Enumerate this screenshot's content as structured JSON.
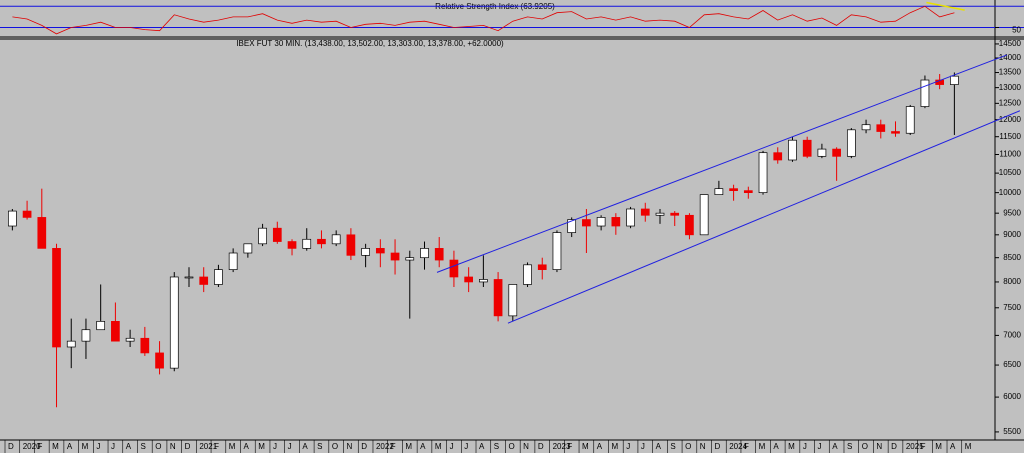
{
  "chart_data": [
    {
      "type": "line",
      "title": "Relative Strength Index (63.9205)",
      "color": "#e00000",
      "x": [
        0.5,
        1.5,
        2.5,
        3.5,
        4.5,
        5.5,
        6.5,
        7.5,
        8.5,
        9.5,
        10.5,
        11.5,
        12.5,
        13.5,
        14.5,
        15.5,
        16.5,
        17.5,
        18.5,
        19.5,
        20.5,
        21.5,
        22.5,
        23.5,
        24.5,
        25.5,
        26.5,
        27.5,
        28.5,
        29.5,
        30.5,
        31.5,
        32.5,
        33.5,
        34.5,
        35.5,
        36.5,
        37.5,
        38.5,
        39.5,
        40.5,
        41.5,
        42.5,
        43.5,
        44.5,
        45.5,
        46.5,
        47.5,
        48.5,
        49.5,
        50.5,
        51.5,
        52.5,
        53.5,
        54.5,
        55.5,
        56.5,
        57.5,
        58.5,
        59.5,
        60.5,
        61.5,
        62.5,
        63.5,
        64.5
      ],
      "values": [
        60,
        58,
        52,
        44,
        50,
        52,
        55,
        50,
        50,
        48,
        47,
        62,
        58,
        55,
        57,
        60,
        60,
        63,
        57,
        54,
        57,
        55,
        56,
        50,
        53,
        54,
        52,
        55,
        56,
        53,
        50,
        51,
        52,
        47,
        56,
        60,
        58,
        64,
        65,
        58,
        60,
        57,
        60,
        56,
        57,
        56,
        50,
        62,
        63,
        60,
        58,
        66,
        57,
        62,
        56,
        59,
        52,
        62,
        60,
        55,
        56,
        64,
        70,
        60,
        63.9
      ],
      "xlim": [
        -0.34,
        67.26
      ],
      "ylim": [
        42,
        75
      ],
      "yticks": [
        50
      ],
      "hlines": [
        70,
        50
      ],
      "hline_color": "#1010e0",
      "trendline": {
        "x": [
          62.6,
          65.2
        ],
        "y": [
          73.6,
          66.4
        ],
        "color": "#e8e000"
      }
    },
    {
      "type": "candlestick",
      "title": "IBEX FUT 30 MIN. (13,438.00, 13,502.00, 13,303.00, 13,378.00, +62.0000)",
      "x": [
        0.5,
        1.5,
        2.5,
        3.5,
        4.5,
        5.5,
        6.5,
        7.5,
        8.5,
        9.5,
        10.5,
        11.5,
        12.5,
        13.5,
        14.5,
        15.5,
        16.5,
        17.5,
        18.5,
        19.5,
        20.5,
        21.5,
        22.5,
        23.5,
        24.5,
        25.5,
        26.5,
        27.5,
        28.5,
        29.5,
        30.5,
        31.5,
        32.5,
        33.5,
        34.5,
        35.5,
        36.5,
        37.5,
        38.5,
        39.5,
        40.5,
        41.5,
        42.5,
        43.5,
        44.5,
        45.5,
        46.5,
        47.5,
        48.5,
        49.5,
        50.5,
        51.5,
        52.5,
        53.5,
        54.5,
        55.5,
        56.5,
        57.5,
        58.5,
        59.5,
        60.5,
        61.5,
        62.5,
        63.5,
        64.5
      ],
      "open": [
        9200,
        9550,
        9400,
        8700,
        6800,
        6900,
        7100,
        7250,
        6900,
        6950,
        6700,
        6450,
        8100,
        8100,
        7950,
        8250,
        8600,
        8800,
        9150,
        8850,
        8700,
        8900,
        8800,
        9000,
        8550,
        8700,
        8600,
        8450,
        8500,
        8700,
        8450,
        8100,
        8000,
        8050,
        7350,
        7950,
        8350,
        8250,
        9050,
        9350,
        9200,
        9400,
        9200,
        9600,
        9450,
        9500,
        9450,
        9000,
        9950,
        10100,
        10050,
        10000,
        11050,
        10850,
        11400,
        10950,
        11150,
        10950,
        11700,
        11850,
        11650,
        11600,
        12400,
        13250,
        13100
      ],
      "high": [
        9600,
        9800,
        10100,
        8800,
        7300,
        7300,
        7950,
        7600,
        7100,
        7150,
        6900,
        8200,
        8300,
        8300,
        8350,
        8700,
        8800,
        9250,
        9300,
        8900,
        9150,
        9100,
        9100,
        9150,
        8800,
        8900,
        8900,
        8650,
        8850,
        8950,
        8650,
        8300,
        8550,
        8200,
        7950,
        8400,
        8500,
        9100,
        9400,
        9600,
        9450,
        9500,
        9650,
        9750,
        9600,
        9550,
        9500,
        9950,
        10300,
        10200,
        10150,
        11100,
        11200,
        11500,
        11500,
        11300,
        11200,
        11750,
        12000,
        12000,
        11950,
        12450,
        13400,
        13450,
        13502
      ],
      "low": [
        9100,
        9350,
        8700,
        5850,
        6450,
        6600,
        7100,
        6900,
        6800,
        6650,
        6350,
        6400,
        7900,
        7800,
        7900,
        8200,
        8500,
        8750,
        8800,
        8550,
        8650,
        8700,
        8750,
        8450,
        8300,
        8300,
        8150,
        7300,
        8250,
        8300,
        7900,
        7800,
        7900,
        7250,
        7250,
        7900,
        8050,
        8200,
        8950,
        8600,
        9100,
        9000,
        9150,
        9300,
        9250,
        9200,
        8900,
        9000,
        9950,
        9800,
        9850,
        9950,
        10750,
        10800,
        10900,
        10900,
        10300,
        10900,
        11600,
        11450,
        11500,
        11550,
        12350,
        12950,
        11550
      ],
      "close": [
        9550,
        9400,
        8700,
        6800,
        6900,
        7100,
        7250,
        6900,
        6950,
        6700,
        6450,
        8100,
        8100,
        7950,
        8250,
        8600,
        8800,
        9150,
        8850,
        8700,
        8900,
        8800,
        9000,
        8550,
        8700,
        8600,
        8450,
        8500,
        8700,
        8450,
        8100,
        8000,
        8050,
        7350,
        7950,
        8350,
        8250,
        9050,
        9350,
        9200,
        9400,
        9200,
        9600,
        9450,
        9500,
        9450,
        9000,
        9950,
        10100,
        10050,
        10000,
        11050,
        10850,
        11400,
        10950,
        11150,
        10950,
        11700,
        11850,
        11650,
        11600,
        12400,
        13250,
        13100,
        13378
      ],
      "up_color": "#ffffff",
      "down_color": "#ee0000",
      "log": true,
      "xlim": [
        -0.34,
        67.26
      ],
      "ylim": [
        5390,
        14680
      ],
      "yticks": [
        5500,
        6000,
        6500,
        7000,
        7500,
        8000,
        8500,
        9000,
        9500,
        10000,
        10500,
        11000,
        11500,
        12000,
        12500,
        13000,
        13500,
        14000,
        14500
      ],
      "xticks": [
        {
          "value": 0,
          "label": "D"
        },
        {
          "value": 1,
          "label": "2020"
        },
        {
          "value": 2,
          "label": "F"
        },
        {
          "value": 3,
          "label": "M"
        },
        {
          "value": 4,
          "label": "A"
        },
        {
          "value": 5,
          "label": "M"
        },
        {
          "value": 6,
          "label": "J"
        },
        {
          "value": 7,
          "label": "J"
        },
        {
          "value": 8,
          "label": "A"
        },
        {
          "value": 9,
          "label": "S"
        },
        {
          "value": 10,
          "label": "O"
        },
        {
          "value": 11,
          "label": "N"
        },
        {
          "value": 12,
          "label": "D"
        },
        {
          "value": 13,
          "label": "2021"
        },
        {
          "value": 14,
          "label": "F"
        },
        {
          "value": 15,
          "label": "M"
        },
        {
          "value": 16,
          "label": "A"
        },
        {
          "value": 17,
          "label": "M"
        },
        {
          "value": 18,
          "label": "J"
        },
        {
          "value": 19,
          "label": "J"
        },
        {
          "value": 20,
          "label": "A"
        },
        {
          "value": 21,
          "label": "S"
        },
        {
          "value": 22,
          "label": "O"
        },
        {
          "value": 23,
          "label": "N"
        },
        {
          "value": 24,
          "label": "D"
        },
        {
          "value": 25,
          "label": "2022"
        },
        {
          "value": 26,
          "label": "F"
        },
        {
          "value": 27,
          "label": "M"
        },
        {
          "value": 28,
          "label": "A"
        },
        {
          "value": 29,
          "label": "M"
        },
        {
          "value": 30,
          "label": "J"
        },
        {
          "value": 31,
          "label": "J"
        },
        {
          "value": 32,
          "label": "A"
        },
        {
          "value": 33,
          "label": "S"
        },
        {
          "value": 34,
          "label": "O"
        },
        {
          "value": 35,
          "label": "N"
        },
        {
          "value": 36,
          "label": "D"
        },
        {
          "value": 37,
          "label": "2023"
        },
        {
          "value": 38,
          "label": "F"
        },
        {
          "value": 39,
          "label": "M"
        },
        {
          "value": 40,
          "label": "A"
        },
        {
          "value": 41,
          "label": "M"
        },
        {
          "value": 42,
          "label": "J"
        },
        {
          "value": 43,
          "label": "J"
        },
        {
          "value": 44,
          "label": "A"
        },
        {
          "value": 45,
          "label": "S"
        },
        {
          "value": 46,
          "label": "O"
        },
        {
          "value": 47,
          "label": "N"
        },
        {
          "value": 48,
          "label": "D"
        },
        {
          "value": 49,
          "label": "2024"
        },
        {
          "value": 50,
          "label": "F"
        },
        {
          "value": 51,
          "label": "M"
        },
        {
          "value": 52,
          "label": "A"
        },
        {
          "value": 53,
          "label": "M"
        },
        {
          "value": 54,
          "label": "J"
        },
        {
          "value": 55,
          "label": "J"
        },
        {
          "value": 56,
          "label": "A"
        },
        {
          "value": 57,
          "label": "S"
        },
        {
          "value": 58,
          "label": "O"
        },
        {
          "value": 59,
          "label": "N"
        },
        {
          "value": 60,
          "label": "D"
        },
        {
          "value": 61,
          "label": "2025"
        },
        {
          "value": 62,
          "label": "F"
        },
        {
          "value": 63,
          "label": "M"
        },
        {
          "value": 64,
          "label": "A"
        },
        {
          "value": 65,
          "label": "M"
        }
      ],
      "channel_color": "#2020e0",
      "channel": [
        {
          "x": [
            29.35,
            68.07
          ],
          "y": [
            8194,
            14108
          ]
        },
        {
          "x": [
            34.17,
            68.95
          ],
          "y": [
            7217,
            12270
          ]
        }
      ]
    }
  ]
}
